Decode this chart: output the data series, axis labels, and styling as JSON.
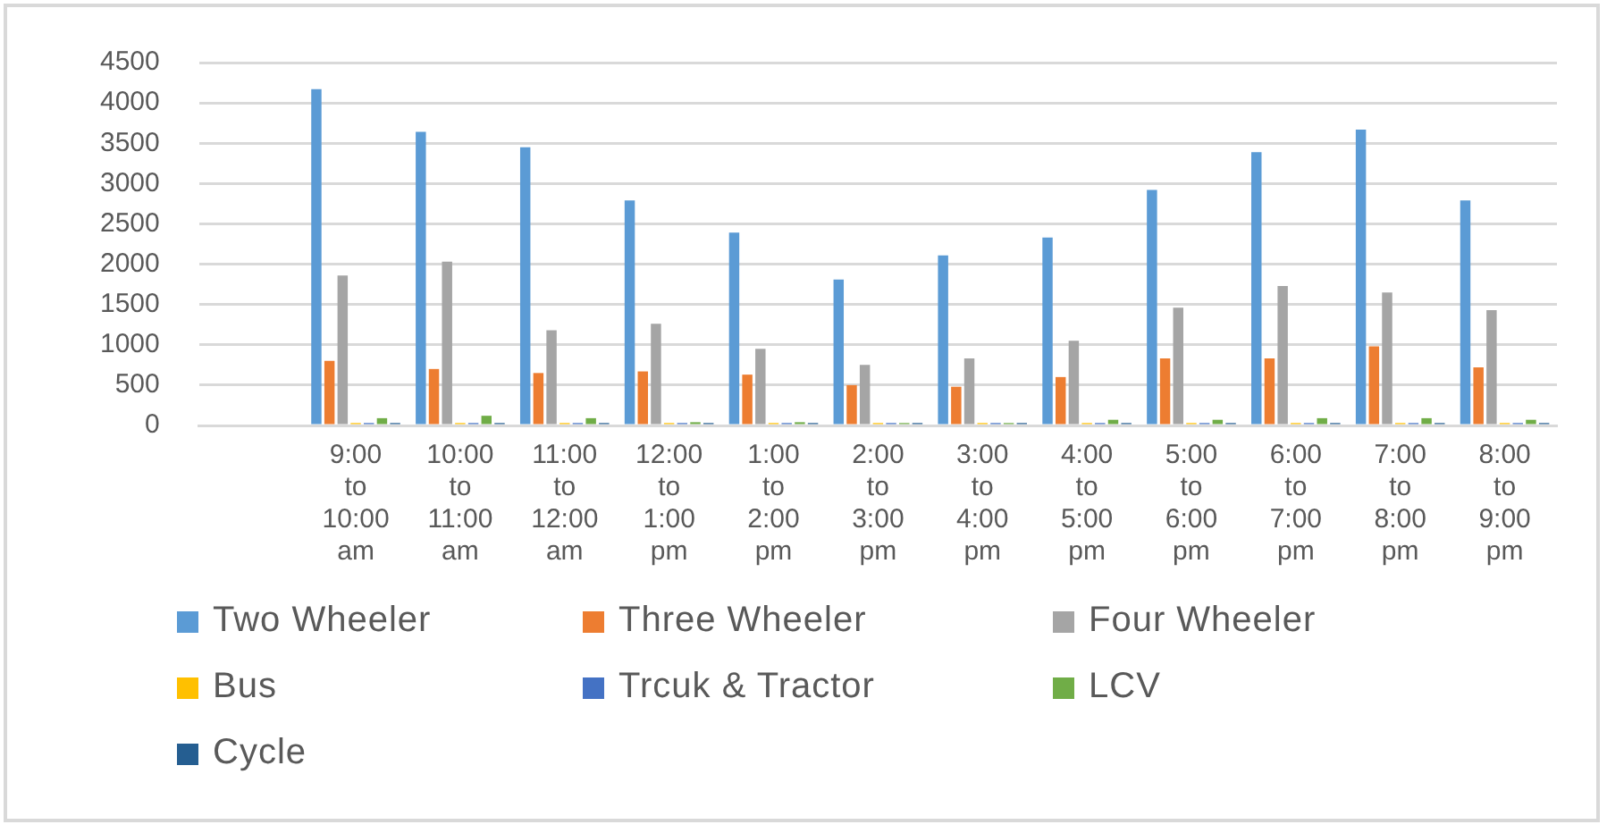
{
  "chart_data": {
    "type": "bar",
    "categories": [
      null,
      "9:00 to 10:00 am",
      "10:00 to 11:00 am",
      "11:00 to 12:00 am",
      "12:00 to 1:00 pm",
      "1:00 to 2:00 pm",
      "2:00 to 3:00 pm",
      "3:00 to 4:00 pm",
      "4:00 to 5:00 pm",
      "5:00 to 6:00 pm",
      "6:00 to 7:00 pm",
      "7:00 to 8:00 pm",
      "8:00 to 9:00 pm"
    ],
    "series": [
      {
        "name": "Two Wheeler",
        "color": "#5b9bd5",
        "values": [
          null,
          4170,
          3640,
          3450,
          2790,
          2390,
          1810,
          2110,
          2330,
          2920,
          3390,
          3670,
          2790
        ]
      },
      {
        "name": "Three Wheeler",
        "color": "#ed7d31",
        "values": [
          null,
          800,
          700,
          650,
          670,
          630,
          500,
          480,
          600,
          830,
          830,
          980,
          720
        ]
      },
      {
        "name": "Four Wheeler",
        "color": "#a5a5a5",
        "values": [
          null,
          1860,
          2030,
          1180,
          1260,
          950,
          750,
          830,
          1050,
          1460,
          1730,
          1650,
          1430
        ]
      },
      {
        "name": "Bus",
        "color": "#ffc000",
        "values": [
          null,
          30,
          30,
          30,
          30,
          30,
          30,
          30,
          30,
          30,
          30,
          30,
          30
        ]
      },
      {
        "name": "Trcuk & Tractor",
        "color": "#4472c4",
        "values": [
          null,
          30,
          30,
          30,
          30,
          30,
          30,
          30,
          30,
          30,
          30,
          30,
          30
        ]
      },
      {
        "name": "LCV",
        "color": "#70ad47",
        "values": [
          null,
          90,
          120,
          90,
          40,
          40,
          30,
          30,
          70,
          70,
          90,
          90,
          70
        ]
      },
      {
        "name": "Cycle",
        "color": "#255e91",
        "values": [
          null,
          30,
          30,
          30,
          30,
          30,
          30,
          30,
          30,
          30,
          30,
          30,
          30
        ]
      }
    ],
    "ylim": [
      0,
      4500
    ],
    "yticks": [
      0,
      500,
      1000,
      1500,
      2000,
      2500,
      3000,
      3500,
      4000,
      4500
    ],
    "grid": "y",
    "legend": "bottom"
  }
}
